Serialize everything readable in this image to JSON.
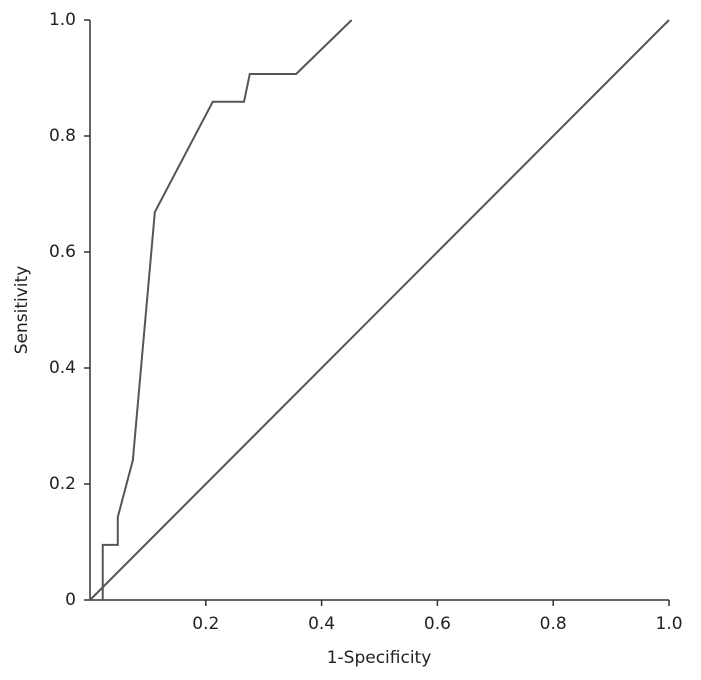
{
  "chart_data": {
    "type": "line",
    "xlabel": "1-Specificity",
    "ylabel": "Sensitivity",
    "series": [
      {
        "color": "#555555",
        "x": [
          0.022,
          0.022,
          0.048,
          0.048,
          0.074,
          0.112,
          0.212,
          0.266,
          0.276,
          0.356,
          0.452
        ],
        "values": [
          0,
          0.095,
          0.095,
          0.143,
          0.241,
          0.669,
          0.859,
          0.859,
          0.907,
          0.907,
          1.0
        ]
      },
      {
        "color": "#555555",
        "x": [
          0,
          1
        ],
        "values": [
          0,
          1
        ]
      }
    ],
    "xlim": [
      0,
      1
    ],
    "ylim": [
      0,
      1
    ],
    "xticks": [
      0.2,
      0.4,
      0.6,
      0.8,
      {
        "value": 1,
        "label": "1.0"
      }
    ],
    "yticks": [
      0,
      0.2,
      0.4,
      0.6,
      0.8,
      {
        "value": 1,
        "label": "1.0"
      }
    ]
  }
}
